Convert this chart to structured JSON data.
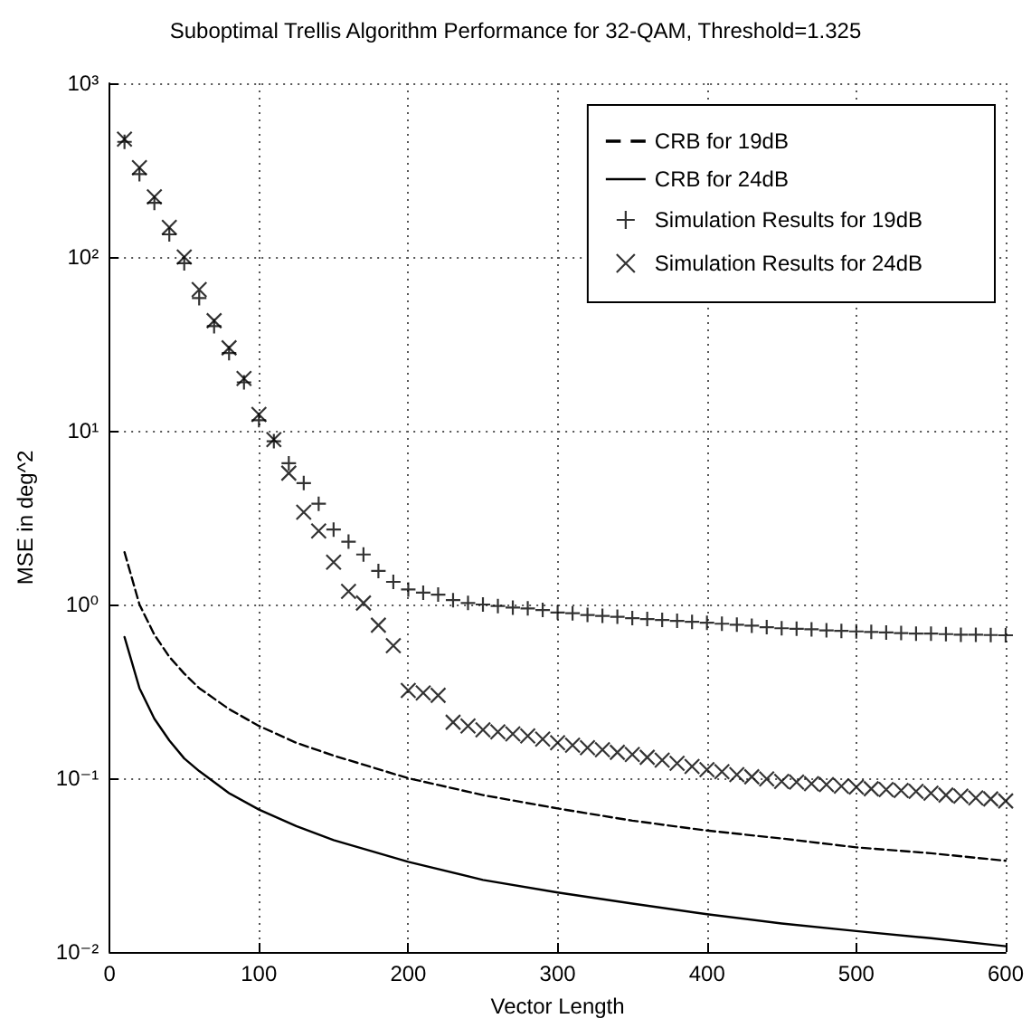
{
  "chart_data": {
    "type": "line",
    "title": "Suboptimal Trellis Algorithm Performance for 32-QAM, Threshold=1.325",
    "xlabel": "Vector Length",
    "ylabel": "MSE in deg^2",
    "log": "y",
    "grid": true,
    "legend": "top right",
    "xlim": [
      0,
      600
    ],
    "xticks": [
      0,
      100,
      200,
      300,
      400,
      500,
      600
    ],
    "ylim": [
      0.01,
      1000
    ],
    "yticks": [
      {
        "value": 0.01,
        "label": "10⁻²"
      },
      {
        "value": 0.1,
        "label": "10⁻¹"
      },
      {
        "value": 1,
        "label": "10⁰"
      },
      {
        "value": 10,
        "label": "10¹"
      },
      {
        "value": 100,
        "label": "10²"
      },
      {
        "value": 1000,
        "label": "10³"
      }
    ],
    "series": [
      {
        "name": "CRB for 19dB",
        "color": "#000000",
        "line_style": "dashed",
        "marker": "none",
        "x": [
          10,
          20,
          30,
          40,
          50,
          60,
          80,
          100,
          125,
          150,
          200,
          250,
          300,
          350,
          400,
          450,
          500,
          550,
          600
        ],
        "values": [
          2.0,
          1.0,
          0.67,
          0.5,
          0.4,
          0.33,
          0.25,
          0.2,
          0.16,
          0.135,
          0.1,
          0.08,
          0.067,
          0.057,
          0.05,
          0.045,
          0.04,
          0.037,
          0.0335
        ]
      },
      {
        "name": "CRB for 24dB",
        "color": "#000000",
        "line_style": "solid",
        "marker": "none",
        "x": [
          10,
          20,
          30,
          40,
          50,
          60,
          80,
          100,
          125,
          150,
          200,
          250,
          300,
          350,
          400,
          450,
          500,
          550,
          600
        ],
        "values": [
          0.65,
          0.33,
          0.22,
          0.165,
          0.13,
          0.11,
          0.082,
          0.066,
          0.053,
          0.044,
          0.033,
          0.026,
          0.022,
          0.019,
          0.0165,
          0.0146,
          0.0132,
          0.012,
          0.0108
        ]
      },
      {
        "name": "Simulation Results for 19dB",
        "type": "scatter",
        "color": "#000000",
        "marker": "plus",
        "x": [
          10,
          20,
          30,
          40,
          50,
          60,
          70,
          80,
          90,
          100,
          110,
          120,
          130,
          140,
          150,
          160,
          170,
          180,
          190,
          200,
          210,
          220,
          230,
          240,
          250,
          260,
          270,
          280,
          290,
          300,
          310,
          320,
          330,
          340,
          350,
          360,
          370,
          380,
          390,
          400,
          410,
          420,
          430,
          440,
          450,
          460,
          470,
          480,
          490,
          500,
          510,
          520,
          530,
          540,
          550,
          560,
          570,
          580,
          590,
          600
        ],
        "values": [
          460,
          300,
          205,
          135,
          92,
          58,
          40,
          28,
          19,
          11.5,
          8.7,
          6.5,
          5.0,
          3.8,
          2.7,
          2.3,
          1.94,
          1.56,
          1.35,
          1.22,
          1.17,
          1.14,
          1.06,
          1.02,
          1.0,
          0.98,
          0.96,
          0.95,
          0.93,
          0.9,
          0.89,
          0.87,
          0.86,
          0.85,
          0.835,
          0.825,
          0.815,
          0.805,
          0.795,
          0.785,
          0.775,
          0.765,
          0.755,
          0.74,
          0.73,
          0.725,
          0.72,
          0.71,
          0.705,
          0.7,
          0.695,
          0.69,
          0.685,
          0.68,
          0.68,
          0.675,
          0.67,
          0.67,
          0.667,
          0.665
        ]
      },
      {
        "name": "Simulation Results for 24dB",
        "type": "scatter",
        "color": "#000000",
        "marker": "cross",
        "x": [
          10,
          20,
          30,
          40,
          50,
          60,
          70,
          80,
          90,
          100,
          110,
          120,
          130,
          140,
          150,
          160,
          170,
          180,
          190,
          200,
          210,
          220,
          230,
          240,
          250,
          260,
          270,
          280,
          290,
          300,
          310,
          320,
          330,
          340,
          350,
          360,
          370,
          380,
          390,
          400,
          410,
          420,
          430,
          440,
          450,
          460,
          470,
          480,
          490,
          500,
          510,
          520,
          530,
          540,
          550,
          560,
          570,
          580,
          590,
          600
        ],
        "values": [
          477,
          327,
          222,
          148,
          100,
          65,
          43,
          30,
          20,
          12.4,
          8.9,
          5.7,
          3.4,
          2.65,
          1.75,
          1.19,
          1.02,
          0.76,
          0.58,
          0.32,
          0.31,
          0.3,
          0.21,
          0.2,
          0.19,
          0.185,
          0.18,
          0.175,
          0.168,
          0.16,
          0.155,
          0.15,
          0.146,
          0.141,
          0.137,
          0.132,
          0.127,
          0.122,
          0.117,
          0.112,
          0.109,
          0.105,
          0.102,
          0.099,
          0.096,
          0.095,
          0.093,
          0.092,
          0.09,
          0.089,
          0.087,
          0.086,
          0.085,
          0.084,
          0.082,
          0.08,
          0.079,
          0.077,
          0.076,
          0.074
        ]
      }
    ]
  }
}
